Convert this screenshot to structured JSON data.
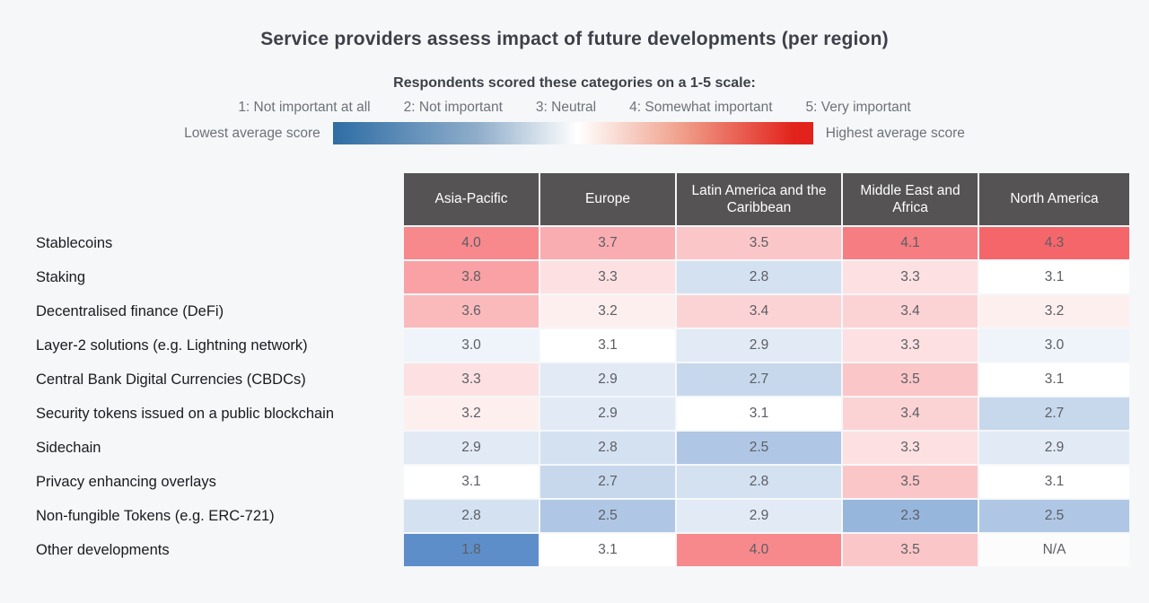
{
  "title": "Service providers assess impact of future developments (per region)",
  "legend": {
    "subtitle": "Respondents scored these categories on a 1-5 scale:",
    "scale_labels": [
      "1: Not important at all",
      "2: Not important",
      "3: Neutral",
      "4: Somewhat important",
      "5: Very important"
    ],
    "gradient_left_label": "Lowest average score",
    "gradient_right_label": "Highest average score"
  },
  "chart_data": {
    "type": "heatmap",
    "title": "Service providers assess impact of future developments (per region)",
    "columns": [
      "Asia-Pacific",
      "Europe",
      "Latin America and the Caribbean",
      "Middle East and Africa",
      "North America"
    ],
    "rows": [
      {
        "label": "Stablecoins",
        "values": [
          4.0,
          3.7,
          3.5,
          4.1,
          4.3
        ]
      },
      {
        "label": "Staking",
        "values": [
          3.8,
          3.3,
          2.8,
          3.3,
          3.1
        ]
      },
      {
        "label": "Decentralised finance (DeFi)",
        "values": [
          3.6,
          3.2,
          3.4,
          3.4,
          3.2
        ]
      },
      {
        "label": "Layer-2 solutions (e.g. Lightning network)",
        "values": [
          3.0,
          3.1,
          2.9,
          3.3,
          3.0
        ]
      },
      {
        "label": "Central Bank Digital Currencies (CBDCs)",
        "values": [
          3.3,
          2.9,
          2.7,
          3.5,
          3.1
        ]
      },
      {
        "label": "Security tokens issued on a public blockchain",
        "values": [
          3.2,
          2.9,
          3.1,
          3.4,
          2.7
        ]
      },
      {
        "label": "Sidechain",
        "values": [
          2.9,
          2.8,
          2.5,
          3.3,
          2.9
        ]
      },
      {
        "label": "Privacy enhancing overlays",
        "values": [
          3.1,
          2.7,
          2.8,
          3.5,
          3.1
        ]
      },
      {
        "label": "Non-fungible Tokens (e.g. ERC-721)",
        "values": [
          2.8,
          2.5,
          2.9,
          2.3,
          2.5
        ]
      },
      {
        "label": "Other developments",
        "values": [
          1.8,
          3.1,
          4.0,
          3.5,
          null
        ]
      }
    ],
    "na_display": "N/A",
    "value_scale": {
      "min": 1,
      "max": 5,
      "neutral": 3.1,
      "full_intensity_delta": 1.45
    },
    "legend_position": "top"
  },
  "colors": {
    "page_bg": "#f5f7f9",
    "title_text": "#3e4049",
    "muted_text": "#6e7278",
    "header_bg": "#565354",
    "header_text": "#ffffff",
    "cell_text": "#5c5d64",
    "row_label_text": "#191b1f",
    "scale_low": "#2e6da4",
    "scale_mid": "#ffffff",
    "scale_high": "#e2231c",
    "cell_blue_anchor": "#4d82c3",
    "cell_red_anchor": "#f34a50",
    "cell_na_bg": "#fcfcfd"
  }
}
